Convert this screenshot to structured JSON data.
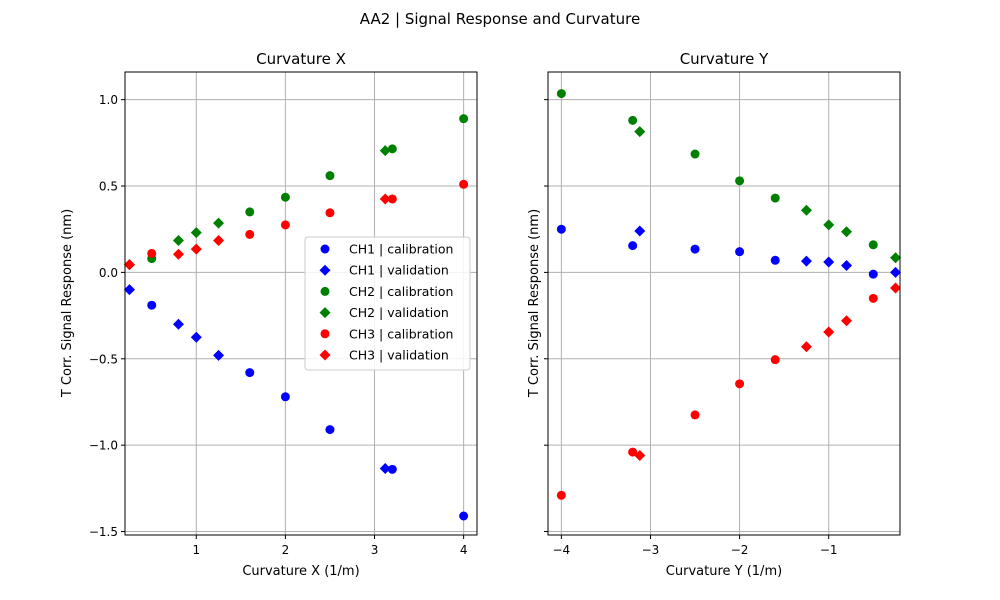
{
  "figure": {
    "suptitle": "AA2 | Signal Response and Curvature"
  },
  "colors": {
    "CH1": "#0000ff",
    "CH2": "#008000",
    "CH3": "#ff0000",
    "grid": "#b0b0b0"
  },
  "chart_data": [
    {
      "type": "scatter",
      "title": "Curvature X",
      "xlabel": "Curvature X (1/m)",
      "ylabel": "T Corr. Signal Response (nm)",
      "xlim": [
        0.2,
        4.15
      ],
      "ylim": [
        -1.52,
        1.16
      ],
      "xticks": [
        1,
        2,
        3,
        4
      ],
      "xtick_labels": [
        "1",
        "2",
        "3",
        "4"
      ],
      "yticks": [
        -1.5,
        -1.0,
        -0.5,
        0.0,
        0.5,
        1.0
      ],
      "ytick_labels": [
        "−1.5",
        "−1.0",
        "−0.5",
        "0.0",
        "0.5",
        "1.0"
      ],
      "grid": true,
      "legend": "center-right",
      "series": [
        {
          "name": "CH1 | calibration",
          "channel": "CH1",
          "marker": "circle",
          "points": [
            [
              0.5,
              -0.19
            ],
            [
              1.6,
              -0.58
            ],
            [
              2.0,
              -0.72
            ],
            [
              2.5,
              -0.91
            ],
            [
              3.2,
              -1.14
            ],
            [
              4.0,
              -1.41
            ]
          ]
        },
        {
          "name": "CH1 | validation",
          "channel": "CH1",
          "marker": "diamond",
          "points": [
            [
              0.25,
              -0.1
            ],
            [
              0.8,
              -0.3
            ],
            [
              1.0,
              -0.375
            ],
            [
              1.25,
              -0.48
            ],
            [
              3.12,
              -1.135
            ]
          ]
        },
        {
          "name": "CH2 | calibration",
          "channel": "CH2",
          "marker": "circle",
          "points": [
            [
              0.5,
              0.08
            ],
            [
              1.6,
              0.35
            ],
            [
              2.0,
              0.435
            ],
            [
              2.5,
              0.56
            ],
            [
              3.2,
              0.715
            ],
            [
              4.0,
              0.89
            ]
          ]
        },
        {
          "name": "CH2 | validation",
          "channel": "CH2",
          "marker": "diamond",
          "points": [
            [
              0.25,
              0.045
            ],
            [
              0.8,
              0.185
            ],
            [
              1.0,
              0.23
            ],
            [
              1.25,
              0.285
            ],
            [
              3.12,
              0.705
            ]
          ]
        },
        {
          "name": "CH3 | calibration",
          "channel": "CH3",
          "marker": "circle",
          "points": [
            [
              0.5,
              0.11
            ],
            [
              1.6,
              0.22
            ],
            [
              2.0,
              0.275
            ],
            [
              2.5,
              0.345
            ],
            [
              3.2,
              0.425
            ],
            [
              4.0,
              0.51
            ]
          ]
        },
        {
          "name": "CH3 | validation",
          "channel": "CH3",
          "marker": "diamond",
          "points": [
            [
              0.25,
              0.045
            ],
            [
              0.8,
              0.105
            ],
            [
              1.0,
              0.135
            ],
            [
              1.25,
              0.185
            ],
            [
              3.12,
              0.425
            ]
          ]
        }
      ]
    },
    {
      "type": "scatter",
      "title": "Curvature Y",
      "xlabel": "Curvature Y (1/m)",
      "ylabel": "T Corr. Signal Response (nm)",
      "xlim": [
        -4.15,
        -0.2
      ],
      "ylim": [
        -1.52,
        1.16
      ],
      "xticks": [
        -4,
        -3,
        -2,
        -1
      ],
      "xtick_labels": [
        "−4",
        "−3",
        "−2",
        "−1"
      ],
      "yticks": [
        -1.5,
        -1.0,
        -0.5,
        0.0,
        0.5,
        1.0
      ],
      "ytick_labels": [
        "",
        "",
        "",
        "",
        "",
        ""
      ],
      "grid": true,
      "series": [
        {
          "name": "CH1 | calibration",
          "channel": "CH1",
          "marker": "circle",
          "points": [
            [
              -4.0,
              0.25
            ],
            [
              -3.2,
              0.155
            ],
            [
              -2.5,
              0.135
            ],
            [
              -2.0,
              0.12
            ],
            [
              -1.6,
              0.07
            ],
            [
              -0.5,
              -0.01
            ]
          ]
        },
        {
          "name": "CH1 | validation",
          "channel": "CH1",
          "marker": "diamond",
          "points": [
            [
              -3.12,
              0.24
            ],
            [
              -1.25,
              0.065
            ],
            [
              -1.0,
              0.06
            ],
            [
              -0.8,
              0.04
            ],
            [
              -0.25,
              0.0
            ]
          ]
        },
        {
          "name": "CH2 | calibration",
          "channel": "CH2",
          "marker": "circle",
          "points": [
            [
              -4.0,
              1.035
            ],
            [
              -3.2,
              0.88
            ],
            [
              -2.5,
              0.685
            ],
            [
              -2.0,
              0.53
            ],
            [
              -1.6,
              0.43
            ],
            [
              -0.5,
              0.16
            ]
          ]
        },
        {
          "name": "CH2 | validation",
          "channel": "CH2",
          "marker": "diamond",
          "points": [
            [
              -3.12,
              0.815
            ],
            [
              -1.25,
              0.36
            ],
            [
              -1.0,
              0.275
            ],
            [
              -0.8,
              0.235
            ],
            [
              -0.25,
              0.085
            ]
          ]
        },
        {
          "name": "CH3 | calibration",
          "channel": "CH3",
          "marker": "circle",
          "points": [
            [
              -4.0,
              -1.29
            ],
            [
              -3.2,
              -1.04
            ],
            [
              -2.5,
              -0.825
            ],
            [
              -2.0,
              -0.645
            ],
            [
              -1.6,
              -0.505
            ],
            [
              -0.5,
              -0.15
            ]
          ]
        },
        {
          "name": "CH3 | validation",
          "channel": "CH3",
          "marker": "diamond",
          "points": [
            [
              -3.12,
              -1.06
            ],
            [
              -1.25,
              -0.43
            ],
            [
              -1.0,
              -0.345
            ],
            [
              -0.8,
              -0.28
            ],
            [
              -0.25,
              -0.09
            ]
          ]
        }
      ]
    }
  ]
}
